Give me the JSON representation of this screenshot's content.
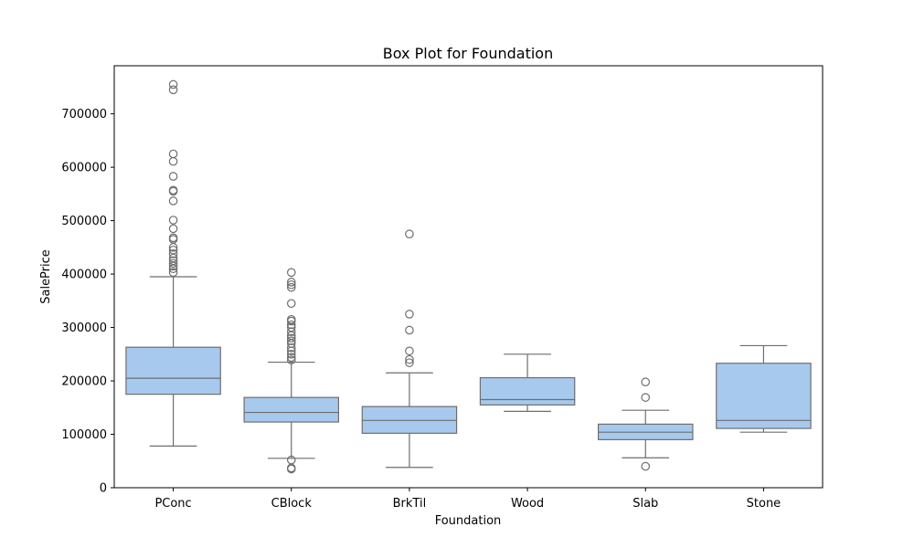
{
  "chart_data": {
    "type": "box",
    "title": "Box Plot for Foundation",
    "xlabel": "Foundation",
    "ylabel": "SalePrice",
    "ylim": [
      0,
      790000
    ],
    "yticks": [
      0,
      100000,
      200000,
      300000,
      400000,
      500000,
      600000,
      700000
    ],
    "ytick_labels": [
      "0",
      "100000",
      "200000",
      "300000",
      "400000",
      "500000",
      "600000",
      "700000"
    ],
    "grid": false,
    "box_color": "#a8c9ee",
    "line_color": "#6e6e6e",
    "categories": [
      "PConc",
      "CBlock",
      "BrkTil",
      "Wood",
      "Slab",
      "Stone"
    ],
    "boxes": [
      {
        "category": "PConc",
        "whisker_low": 78000,
        "q1": 175000,
        "median": 205000,
        "q3": 263000,
        "whisker_high": 395000,
        "outliers": [
          403000,
          410000,
          415000,
          420000,
          425000,
          430000,
          438000,
          445000,
          450000,
          465000,
          468000,
          485000,
          501000,
          537000,
          555000,
          557000,
          583000,
          611000,
          625000,
          745000,
          755000
        ]
      },
      {
        "category": "CBlock",
        "whisker_low": 55000,
        "q1": 123000,
        "median": 141000,
        "q3": 169000,
        "whisker_high": 235000,
        "outliers": [
          35000,
          37000,
          52000,
          239000,
          244000,
          250000,
          256000,
          262000,
          270000,
          275000,
          280000,
          285000,
          292000,
          300000,
          305000,
          312000,
          315000,
          345000,
          375000,
          380000,
          385000,
          403000
        ]
      },
      {
        "category": "BrkTil",
        "whisker_low": 38000,
        "q1": 102000,
        "median": 126000,
        "q3": 152000,
        "whisker_high": 215000,
        "outliers": [
          234000,
          240000,
          256000,
          295000,
          325000,
          475000
        ]
      },
      {
        "category": "Wood",
        "whisker_low": 143000,
        "q1": 155000,
        "median": 165000,
        "q3": 206000,
        "whisker_high": 250000,
        "outliers": []
      },
      {
        "category": "Slab",
        "whisker_low": 56000,
        "q1": 90000,
        "median": 104000,
        "q3": 119000,
        "whisker_high": 145000,
        "outliers": [
          40000,
          169000,
          198000
        ]
      },
      {
        "category": "Stone",
        "whisker_low": 104000,
        "q1": 111000,
        "median": 126000,
        "q3": 233000,
        "whisker_high": 266000,
        "outliers": []
      }
    ]
  }
}
